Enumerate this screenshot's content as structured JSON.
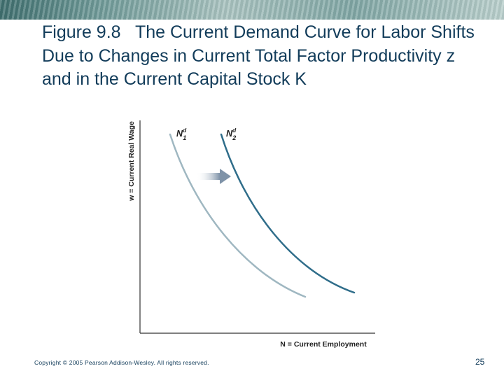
{
  "slide": {
    "figure_label": "Figure 9.8",
    "title_text": "The Current Demand Curve for Labor Shifts Due to Changes in Current Total Factor Productivity z and in the Current Capital Stock K",
    "copyright": "Copyright © 2005 Pearson Addison-Wesley. All rights reserved.",
    "page_number": "25"
  },
  "colors": {
    "title": "#123c5a",
    "curve1": "#9fb7c1",
    "curve2": "#2f6d8a",
    "arrow": "#7f93a8",
    "axis": "#333333"
  },
  "chart_data": {
    "type": "line",
    "title": "",
    "xlabel": "N = Current Employment",
    "ylabel": "w = Current Real Wage",
    "grid": false,
    "annotations": [
      "shift arrow pointing right from N1d to N2d"
    ],
    "series": [
      {
        "name": "N1d",
        "label_base": "N",
        "label_sup": "d",
        "label_sub": "1"
      },
      {
        "name": "N2d",
        "label_base": "N",
        "label_sup": "d",
        "label_sub": "2"
      }
    ]
  }
}
